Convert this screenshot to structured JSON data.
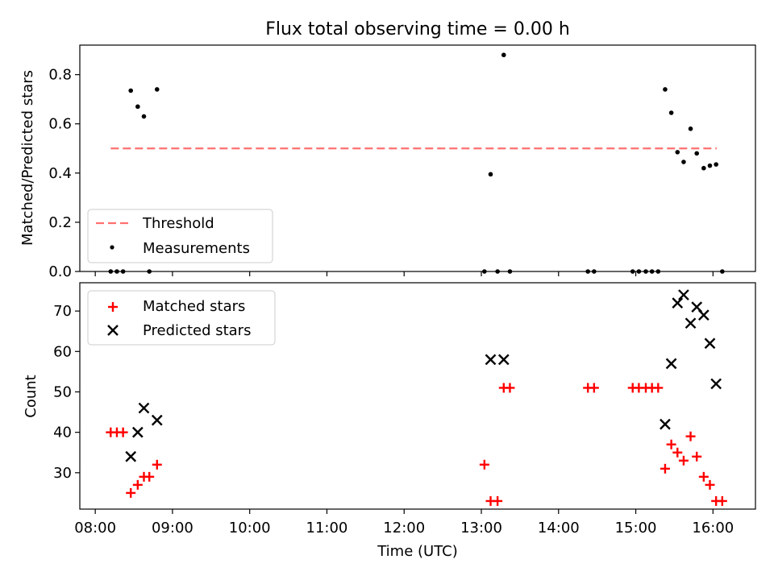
{
  "chart_data": [
    {
      "type": "scatter",
      "title": "Flux total observing time = 0.00 h",
      "ylabel": "Matched/Predicted stars",
      "xlabel": "",
      "xlim": [
        7.8,
        16.55
      ],
      "ylim": [
        0,
        0.92
      ],
      "yticks": [
        0.0,
        0.2,
        0.4,
        0.6,
        0.8
      ],
      "ytick_labels": [
        "0.0",
        "0.2",
        "0.4",
        "0.6",
        "0.8"
      ],
      "xticks": [
        8,
        9,
        10,
        11,
        12,
        13,
        14,
        15,
        16
      ],
      "threshold": {
        "name": "Threshold",
        "value": 0.5,
        "x_range": [
          8.2,
          16.05
        ],
        "color": "#ff7070"
      },
      "series": [
        {
          "name": "Measurements",
          "color": "#000000",
          "points": [
            [
              8.2,
              0.0
            ],
            [
              8.28,
              0.0
            ],
            [
              8.36,
              0.0
            ],
            [
              8.46,
              0.735
            ],
            [
              8.55,
              0.67
            ],
            [
              8.63,
              0.63
            ],
            [
              8.7,
              0.0
            ],
            [
              8.8,
              0.74
            ],
            [
              13.04,
              0.0
            ],
            [
              13.12,
              0.395
            ],
            [
              13.21,
              0.0
            ],
            [
              13.29,
              0.88
            ],
            [
              13.37,
              0.0
            ],
            [
              14.38,
              0.0
            ],
            [
              14.46,
              0.0
            ],
            [
              14.96,
              0.0
            ],
            [
              15.04,
              0.0
            ],
            [
              15.13,
              0.0
            ],
            [
              15.21,
              0.0
            ],
            [
              15.29,
              0.0
            ],
            [
              15.38,
              0.74
            ],
            [
              15.46,
              0.645
            ],
            [
              15.54,
              0.485
            ],
            [
              15.62,
              0.445
            ],
            [
              15.71,
              0.58
            ],
            [
              15.79,
              0.48
            ],
            [
              15.88,
              0.42
            ],
            [
              15.96,
              0.43
            ],
            [
              16.04,
              0.435
            ],
            [
              16.12,
              0.0
            ]
          ]
        }
      ],
      "legend": {
        "position": "lower-left",
        "entries": [
          "Threshold",
          "Measurements"
        ]
      }
    },
    {
      "type": "scatter",
      "title": "",
      "xlabel": "Time (UTC)",
      "ylabel": "Count",
      "xlim": [
        7.8,
        16.55
      ],
      "ylim": [
        21,
        77
      ],
      "yticks": [
        30,
        40,
        50,
        60,
        70
      ],
      "ytick_labels": [
        "30",
        "40",
        "50",
        "60",
        "70"
      ],
      "xticks": [
        8,
        9,
        10,
        11,
        12,
        13,
        14,
        15,
        16
      ],
      "xtick_labels": [
        "08:00",
        "09:00",
        "10:00",
        "11:00",
        "12:00",
        "13:00",
        "14:00",
        "15:00",
        "16:00"
      ],
      "series": [
        {
          "name": "Matched stars",
          "marker": "plus",
          "color": "#ff0000",
          "points": [
            [
              8.2,
              40
            ],
            [
              8.28,
              40
            ],
            [
              8.36,
              40
            ],
            [
              8.46,
              25
            ],
            [
              8.55,
              27
            ],
            [
              8.63,
              29
            ],
            [
              8.7,
              29
            ],
            [
              8.8,
              32
            ],
            [
              13.04,
              32
            ],
            [
              13.12,
              23
            ],
            [
              13.21,
              23
            ],
            [
              13.29,
              51
            ],
            [
              13.37,
              51
            ],
            [
              14.38,
              51
            ],
            [
              14.46,
              51
            ],
            [
              14.96,
              51
            ],
            [
              15.04,
              51
            ],
            [
              15.13,
              51
            ],
            [
              15.21,
              51
            ],
            [
              15.29,
              51
            ],
            [
              15.38,
              31
            ],
            [
              15.46,
              37
            ],
            [
              15.54,
              35
            ],
            [
              15.62,
              33
            ],
            [
              15.71,
              39
            ],
            [
              15.79,
              34
            ],
            [
              15.88,
              29
            ],
            [
              15.96,
              27
            ],
            [
              16.04,
              23
            ],
            [
              16.12,
              23
            ]
          ]
        },
        {
          "name": "Predicted stars",
          "marker": "x",
          "color": "#000000",
          "points": [
            [
              8.46,
              34
            ],
            [
              8.55,
              40
            ],
            [
              8.63,
              46
            ],
            [
              8.8,
              43
            ],
            [
              13.12,
              58
            ],
            [
              13.29,
              58
            ],
            [
              15.38,
              42
            ],
            [
              15.46,
              57
            ],
            [
              15.54,
              72
            ],
            [
              15.62,
              74
            ],
            [
              15.71,
              67
            ],
            [
              15.79,
              71
            ],
            [
              15.88,
              69
            ],
            [
              15.96,
              62
            ],
            [
              16.04,
              52
            ]
          ]
        }
      ],
      "legend": {
        "position": "upper-left",
        "entries": [
          "Matched stars",
          "Predicted stars"
        ]
      }
    }
  ]
}
